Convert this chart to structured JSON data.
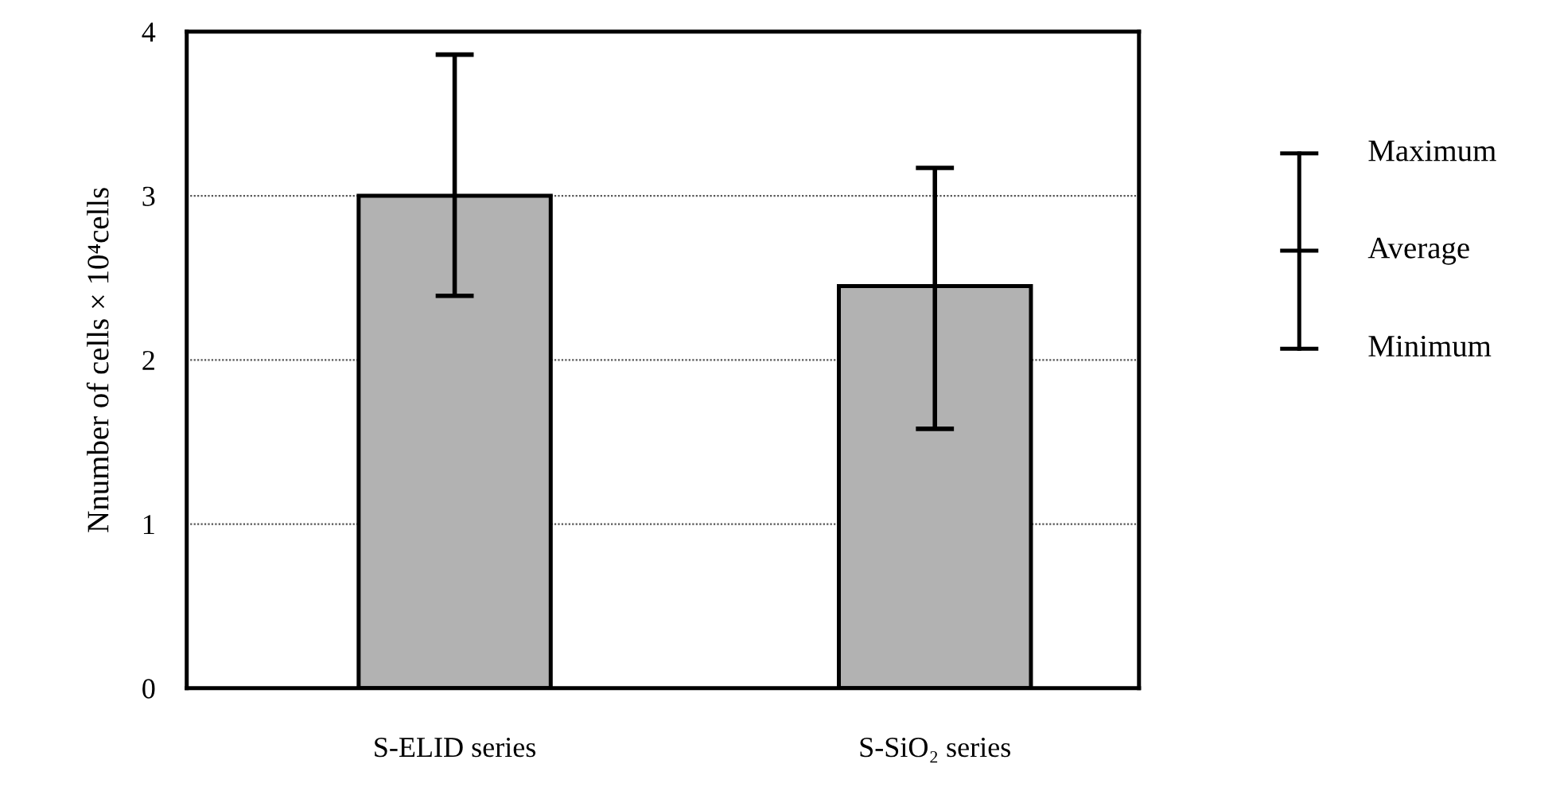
{
  "chart_data": {
    "type": "bar",
    "categories": [
      "S-ELID series",
      "S-SiO₂ series"
    ],
    "values": [
      3.0,
      2.45
    ],
    "errors": [
      [
        2.39,
        3.86
      ],
      [
        1.58,
        3.17
      ]
    ],
    "color": "#b2b2b2",
    "ylabel": "Nnumber of cells × 10⁴cells",
    "ylim": [
      0,
      4
    ],
    "yticks": [
      0,
      1,
      2,
      3,
      4
    ],
    "grid": "y",
    "annotations": [
      "Maximum",
      "Average",
      "Minimum"
    ]
  }
}
